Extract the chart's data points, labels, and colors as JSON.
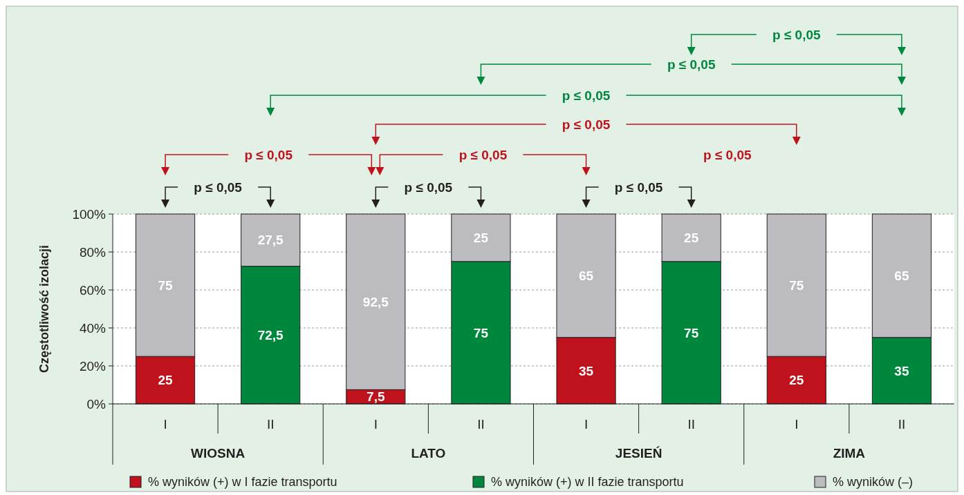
{
  "chart_data": {
    "type": "bar",
    "stacked": true,
    "ylabel": "Częstotliwość izolacji",
    "categories": [
      "I",
      "II",
      "I",
      "II",
      "I",
      "II",
      "I",
      "II"
    ],
    "series": [
      {
        "name": "% wyników (+) w I fazie transportu",
        "color": "#c0121c",
        "values": [
          25,
          null,
          7.5,
          null,
          35,
          null,
          25,
          null
        ],
        "value_labels": [
          "25",
          null,
          "7,5",
          null,
          "35",
          null,
          "25",
          null
        ]
      },
      {
        "name": "% wyników (+) w II fazie transportu",
        "color": "#00873e",
        "values": [
          null,
          72.5,
          null,
          75,
          null,
          75,
          null,
          35
        ],
        "value_labels": [
          null,
          "72,5",
          null,
          "75",
          null,
          "75",
          null,
          "35"
        ]
      },
      {
        "name": "% wyników (–)",
        "color": "#bcbcc0",
        "values": [
          75,
          27.5,
          92.5,
          25,
          65,
          25,
          75,
          65
        ],
        "value_labels": [
          "75",
          "27,5",
          "92,5",
          "25",
          "65",
          "25",
          "75",
          "65"
        ]
      }
    ],
    "ylim": [
      0,
      100
    ],
    "yticks": [
      {
        "value": 0,
        "label": "0%"
      },
      {
        "value": 20,
        "label": "20%"
      },
      {
        "value": 40,
        "label": "40%"
      },
      {
        "value": 60,
        "label": "60%"
      },
      {
        "value": 80,
        "label": "80%"
      },
      {
        "value": 100,
        "label": "100%"
      }
    ],
    "grid": "y",
    "legend": "bottom",
    "annotations": [
      "WIOSNA",
      "LATO",
      "JESIEŃ",
      "ZIMA",
      "p ≤ 0,05",
      "p ≤ 0,05",
      "p ≤ 0,05",
      "p ≤ 0,05",
      "p ≤ 0,05",
      "p ≤ 0,05",
      "p ≤ 0,05",
      "p ≤ 0,05",
      "p ≤ 0,05",
      "p ≤ 0,05"
    ]
  }
}
